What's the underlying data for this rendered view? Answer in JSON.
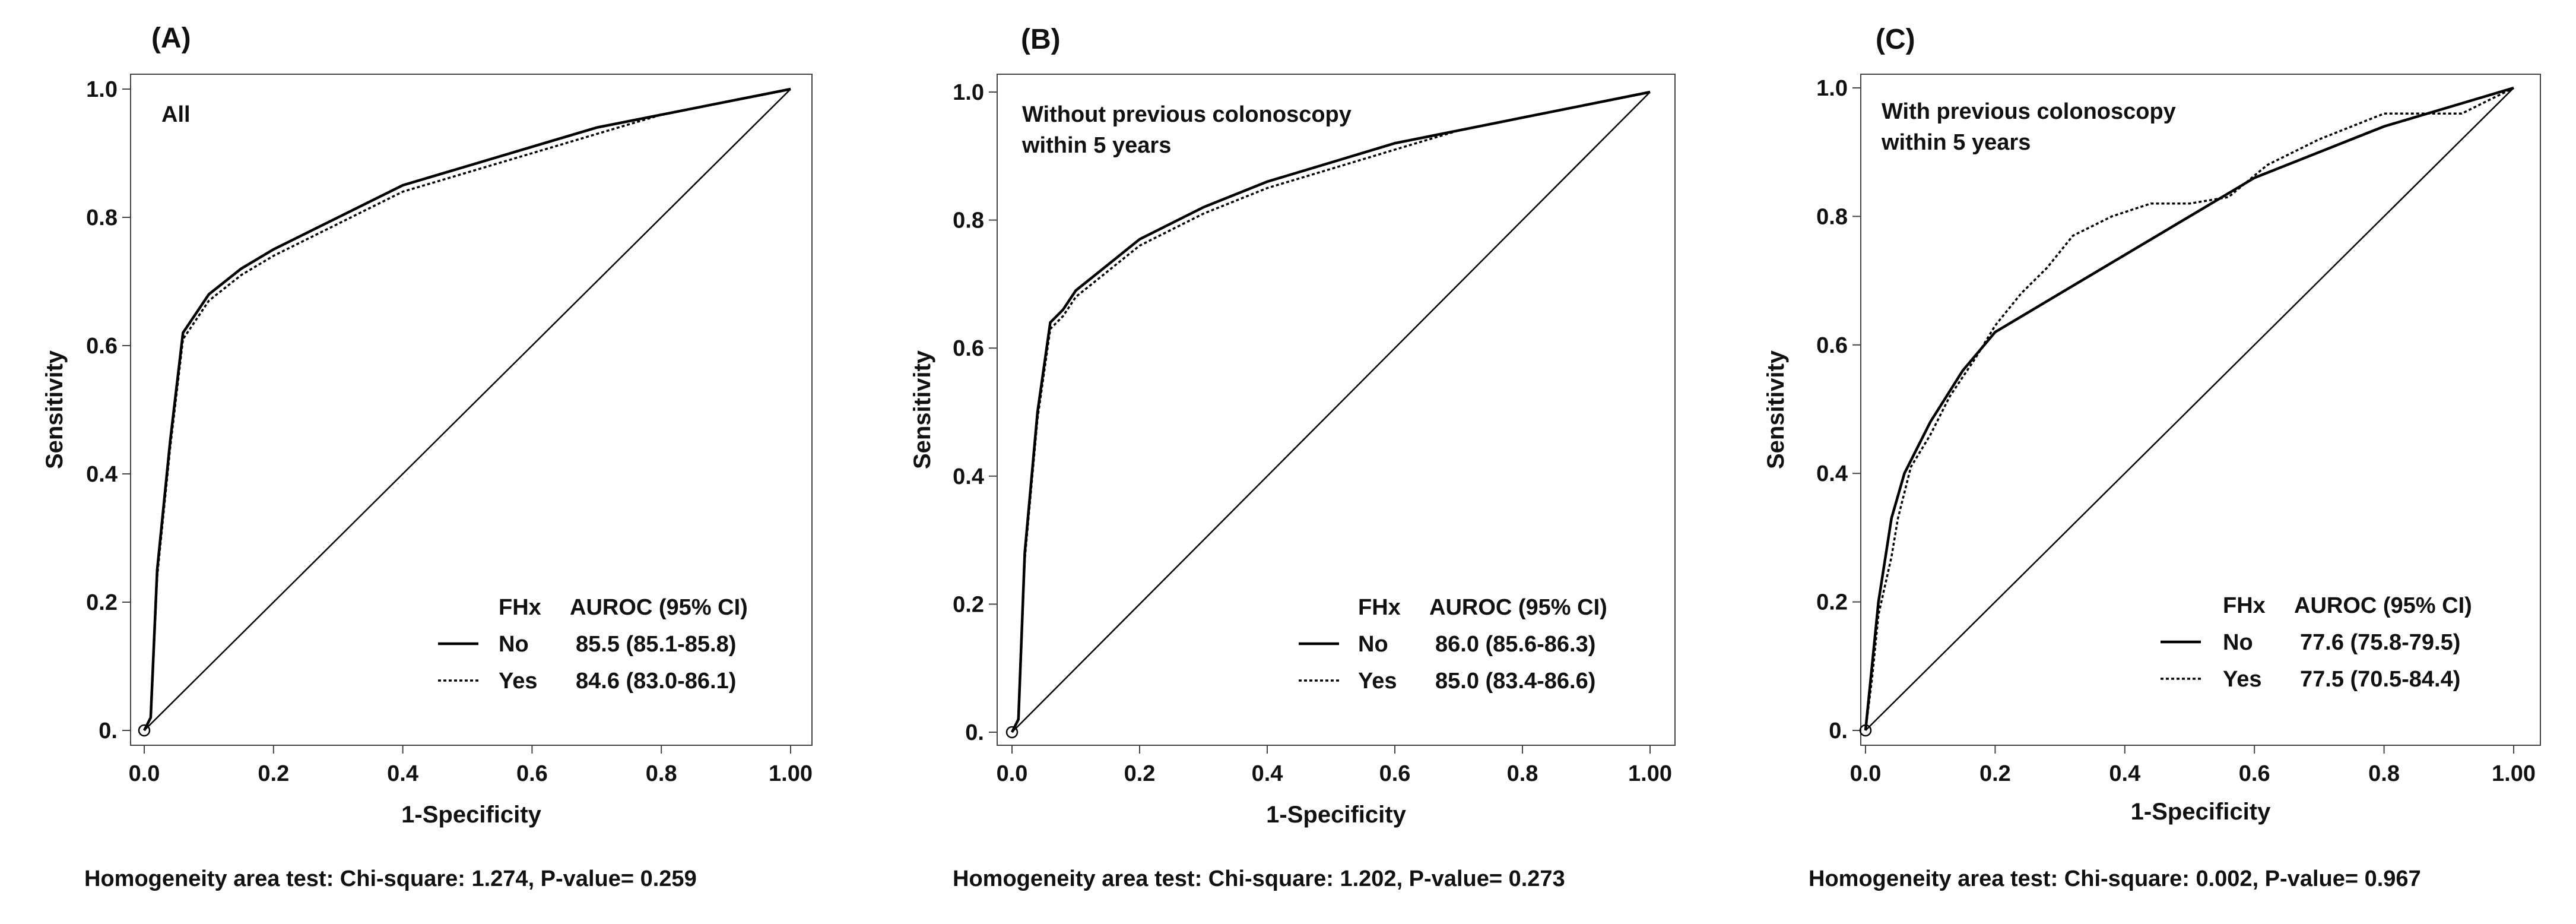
{
  "chart_data": [
    {
      "type": "line",
      "panel_label": "(A)",
      "inset_title": [
        "All"
      ],
      "xlabel": "1-Specificity",
      "ylabel": "Sensitivity",
      "xlim": [
        0,
        1
      ],
      "ylim": [
        0,
        1
      ],
      "x_ticks": [
        "0.0",
        "0.2",
        "0.4",
        "0.6",
        "0.8",
        "1.00"
      ],
      "y_ticks": [
        "0.",
        "0.2",
        "0.4",
        "0.6",
        "0.8",
        "1.0"
      ],
      "legend": {
        "header": [
          "FHx",
          "AUROC (95% CI)"
        ],
        "entries": [
          {
            "name": "No",
            "value": "85.5 (85.1-85.8)",
            "style": "solid"
          },
          {
            "name": "Yes",
            "value": "84.6 (83.0-86.1)",
            "style": "dotted"
          }
        ]
      },
      "series": [
        {
          "name": "No",
          "style": "solid",
          "points": [
            [
              0,
              0
            ],
            [
              0.01,
              0.02
            ],
            [
              0.02,
              0.25
            ],
            [
              0.04,
              0.45
            ],
            [
              0.06,
              0.62
            ],
            [
              0.08,
              0.65
            ],
            [
              0.1,
              0.68
            ],
            [
              0.15,
              0.72
            ],
            [
              0.2,
              0.75
            ],
            [
              0.3,
              0.8
            ],
            [
              0.4,
              0.85
            ],
            [
              0.5,
              0.88
            ],
            [
              0.6,
              0.91
            ],
            [
              0.7,
              0.94
            ],
            [
              0.8,
              0.96
            ],
            [
              0.9,
              0.98
            ],
            [
              1,
              1
            ]
          ]
        },
        {
          "name": "Yes",
          "style": "dotted",
          "points": [
            [
              0,
              0
            ],
            [
              0.01,
              0.02
            ],
            [
              0.02,
              0.24
            ],
            [
              0.04,
              0.44
            ],
            [
              0.06,
              0.61
            ],
            [
              0.08,
              0.64
            ],
            [
              0.1,
              0.67
            ],
            [
              0.15,
              0.71
            ],
            [
              0.2,
              0.74
            ],
            [
              0.3,
              0.79
            ],
            [
              0.4,
              0.84
            ],
            [
              0.5,
              0.87
            ],
            [
              0.6,
              0.9
            ],
            [
              0.7,
              0.93
            ],
            [
              0.8,
              0.96
            ],
            [
              0.9,
              0.98
            ],
            [
              1,
              1
            ]
          ]
        },
        {
          "name": "reference",
          "style": "diagonal",
          "points": [
            [
              0,
              0
            ],
            [
              1,
              1
            ]
          ]
        }
      ],
      "homogeneity": "Homogeneity area test: Chi-square: 1.274, P-value= 0.259"
    },
    {
      "type": "line",
      "panel_label": "(B)",
      "inset_title": [
        "Without previous colonoscopy",
        " within 5 years"
      ],
      "xlabel": "1-Specificity",
      "ylabel": "Sensitivity",
      "xlim": [
        0,
        1
      ],
      "ylim": [
        0,
        1
      ],
      "x_ticks": [
        "0.0",
        "0.2",
        "0.4",
        "0.6",
        "0.8",
        "1.00"
      ],
      "y_ticks": [
        "0.",
        "0.2",
        "0.4",
        "0.6",
        "0.8",
        "1.0"
      ],
      "legend": {
        "header": [
          "FHx",
          "AUROC (95% CI)"
        ],
        "entries": [
          {
            "name": "No",
            "value": "86.0 (85.6-86.3)",
            "style": "solid"
          },
          {
            "name": "Yes",
            "value": "85.0 (83.4-86.6)",
            "style": "dotted"
          }
        ]
      },
      "series": [
        {
          "name": "No",
          "style": "solid",
          "points": [
            [
              0,
              0
            ],
            [
              0.01,
              0.02
            ],
            [
              0.02,
              0.28
            ],
            [
              0.04,
              0.5
            ],
            [
              0.06,
              0.64
            ],
            [
              0.08,
              0.66
            ],
            [
              0.1,
              0.69
            ],
            [
              0.15,
              0.73
            ],
            [
              0.2,
              0.77
            ],
            [
              0.3,
              0.82
            ],
            [
              0.4,
              0.86
            ],
            [
              0.5,
              0.89
            ],
            [
              0.6,
              0.92
            ],
            [
              0.7,
              0.94
            ],
            [
              0.8,
              0.96
            ],
            [
              0.9,
              0.98
            ],
            [
              1,
              1
            ]
          ]
        },
        {
          "name": "Yes",
          "style": "dotted",
          "points": [
            [
              0,
              0
            ],
            [
              0.01,
              0.02
            ],
            [
              0.02,
              0.27
            ],
            [
              0.04,
              0.49
            ],
            [
              0.06,
              0.63
            ],
            [
              0.08,
              0.65
            ],
            [
              0.1,
              0.68
            ],
            [
              0.15,
              0.72
            ],
            [
              0.2,
              0.76
            ],
            [
              0.3,
              0.81
            ],
            [
              0.4,
              0.85
            ],
            [
              0.5,
              0.88
            ],
            [
              0.6,
              0.91
            ],
            [
              0.7,
              0.94
            ],
            [
              0.8,
              0.96
            ],
            [
              0.9,
              0.98
            ],
            [
              1,
              1
            ]
          ]
        },
        {
          "name": "reference",
          "style": "diagonal",
          "points": [
            [
              0,
              0
            ],
            [
              1,
              1
            ]
          ]
        }
      ],
      "homogeneity": "Homogeneity area test: Chi-square: 1.202, P-value= 0.273"
    },
    {
      "type": "line",
      "panel_label": "(C)",
      "inset_title": [
        "With previous colonoscopy",
        " within 5 years"
      ],
      "xlabel": "1-Specificity",
      "ylabel": "Sensitivity",
      "xlim": [
        0,
        1
      ],
      "ylim": [
        0,
        1
      ],
      "x_ticks": [
        "0.0",
        "0.2",
        "0.4",
        "0.6",
        "0.8",
        "1.00"
      ],
      "y_ticks": [
        "0.",
        "0.2",
        "0.4",
        "0.6",
        "0.8",
        "1.0"
      ],
      "legend": {
        "header": [
          "FHx",
          "AUROC (95% CI)"
        ],
        "entries": [
          {
            "name": "No",
            "value": "77.6 (75.8-79.5)",
            "style": "solid"
          },
          {
            "name": "Yes",
            "value": "77.5 (70.5-84.4)",
            "style": "dotted"
          }
        ]
      },
      "series": [
        {
          "name": "No",
          "style": "solid",
          "points": [
            [
              0,
              0
            ],
            [
              0.01,
              0.1
            ],
            [
              0.02,
              0.2
            ],
            [
              0.04,
              0.33
            ],
            [
              0.06,
              0.4
            ],
            [
              0.1,
              0.48
            ],
            [
              0.15,
              0.56
            ],
            [
              0.2,
              0.62
            ],
            [
              0.3,
              0.68
            ],
            [
              0.4,
              0.74
            ],
            [
              0.5,
              0.8
            ],
            [
              0.6,
              0.86
            ],
            [
              0.7,
              0.9
            ],
            [
              0.8,
              0.94
            ],
            [
              0.9,
              0.97
            ],
            [
              1,
              1
            ]
          ]
        },
        {
          "name": "Yes",
          "style": "dotted",
          "points": [
            [
              0,
              0
            ],
            [
              0.01,
              0.08
            ],
            [
              0.02,
              0.18
            ],
            [
              0.04,
              0.27
            ],
            [
              0.05,
              0.33
            ],
            [
              0.07,
              0.41
            ],
            [
              0.1,
              0.46
            ],
            [
              0.13,
              0.52
            ],
            [
              0.17,
              0.58
            ],
            [
              0.2,
              0.63
            ],
            [
              0.24,
              0.68
            ],
            [
              0.28,
              0.72
            ],
            [
              0.32,
              0.77
            ],
            [
              0.38,
              0.8
            ],
            [
              0.44,
              0.82
            ],
            [
              0.5,
              0.82
            ],
            [
              0.56,
              0.83
            ],
            [
              0.62,
              0.88
            ],
            [
              0.7,
              0.92
            ],
            [
              0.8,
              0.96
            ],
            [
              0.86,
              0.96
            ],
            [
              0.92,
              0.96
            ],
            [
              0.96,
              0.98
            ],
            [
              1,
              1
            ]
          ]
        },
        {
          "name": "reference",
          "style": "diagonal",
          "points": [
            [
              0,
              0
            ],
            [
              1,
              1
            ]
          ]
        }
      ],
      "homogeneity": "Homogeneity area test: Chi-square: 0.002, P-value= 0.967"
    }
  ]
}
